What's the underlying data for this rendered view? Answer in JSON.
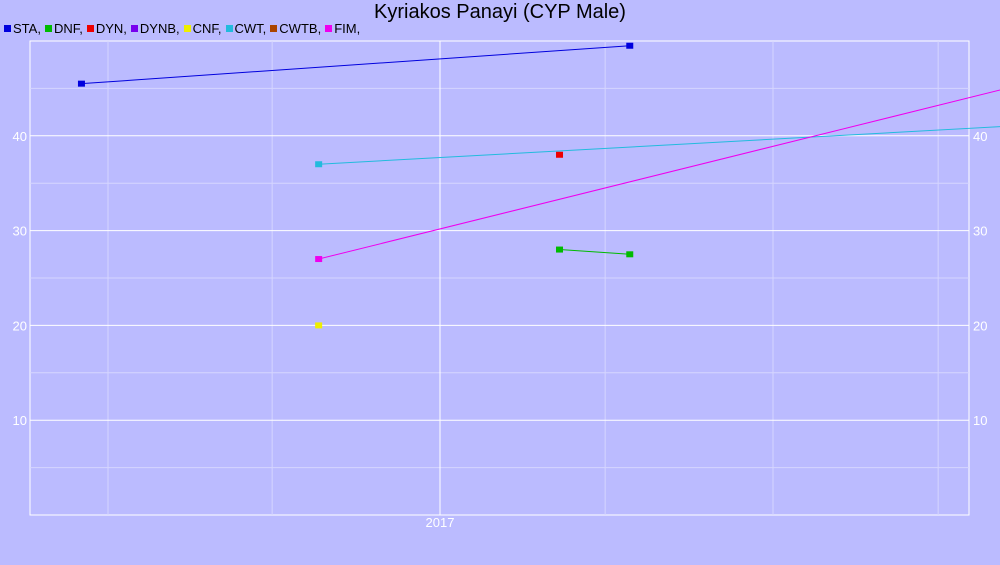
{
  "chart_data": {
    "type": "line",
    "title": "Kyriakos Panayi (CYP Male)",
    "xlabel": "",
    "ylabel": "",
    "x_tick_labels": [
      "2017"
    ],
    "y_ticks": [
      10,
      20,
      30,
      40
    ],
    "ylim": [
      0,
      50
    ],
    "grid": true,
    "legend_position": "top-left",
    "legend": [
      "STA,",
      "DNF,",
      "DYN,",
      "DYNB,",
      "CNF,",
      "CWT,",
      "CWTB,",
      "FIM,"
    ],
    "series": [
      {
        "name": "STA",
        "color": "#0000dd",
        "points": [
          [
            "2015-12-05",
            45.5
          ],
          [
            "2017-07-28",
            49.5
          ]
        ]
      },
      {
        "name": "DNF",
        "color": "#00bb00",
        "points": [
          [
            "2017-05-12",
            28
          ],
          [
            "2017-07-28",
            27.5
          ]
        ]
      },
      {
        "name": "DYN",
        "color": "#ee0000",
        "points": [
          [
            "2017-05-12",
            38
          ]
        ]
      },
      {
        "name": "DYNB",
        "color": "#7700ee",
        "points": []
      },
      {
        "name": "CNF",
        "color": "#eeee00",
        "points": [
          [
            "2016-08-21",
            20
          ]
        ]
      },
      {
        "name": "CWT",
        "color": "#22bbdd",
        "points": [
          [
            "2016-08-21",
            37
          ],
          [
            "2018-09-14",
            41
          ]
        ]
      },
      {
        "name": "CWTB",
        "color": "#aa4400",
        "points": []
      },
      {
        "name": "FIM",
        "color": "#ee00ee",
        "points": [
          [
            "2016-08-21",
            27
          ],
          [
            "2018-09-14",
            45
          ]
        ]
      }
    ]
  }
}
